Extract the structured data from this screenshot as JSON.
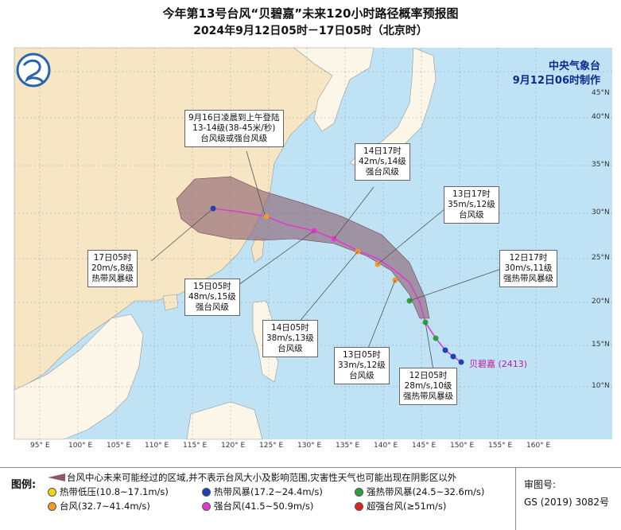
{
  "title": {
    "line1": "今年第13号台风“贝碧嘉”未来120小时路径概率预报图",
    "line2": "2024年9月12日05时－17日05时（北京时）"
  },
  "org": {
    "name": "中央气象台",
    "issued": "9月12日06时制作"
  },
  "storm": {
    "name": "贝碧嘉",
    "code": "(2413)"
  },
  "callouts": {
    "landfall": {
      "line1": "9月16日凌晨到上午登陆",
      "line2": "13-14级(38-45米/秒)",
      "line3": "台风级或强台风级"
    },
    "d14_17": {
      "line1": "14日17时",
      "line2": "42m/s,14级",
      "line3": "强台风级"
    },
    "d13_17": {
      "line1": "13日17时",
      "line2": "35m/s,12级",
      "line3": "台风级"
    },
    "d12_17": {
      "line1": "12日17时",
      "line2": "30m/s,11级",
      "line3": "强热带风暴级"
    },
    "d17_05": {
      "line1": "17日05时",
      "line2": "20m/s,8级",
      "line3": "热带风暴级"
    },
    "d15_05": {
      "line1": "15日05时",
      "line2": "48m/s,15级",
      "line3": "强台风级"
    },
    "d14_05": {
      "line1": "14日05时",
      "line2": "38m/s,13级",
      "line3": "台风级"
    },
    "d13_05": {
      "line1": "13日05时",
      "line2": "33m/s,12级",
      "line3": "台风级"
    },
    "d12_05": {
      "line1": "12日05时",
      "line2": "28m/s,10级",
      "line3": "强热带风暴级"
    }
  },
  "axes": {
    "lon_labels": [
      "95° E",
      "100° E",
      "105° E",
      "110° E",
      "115° E",
      "120° E",
      "125° E",
      "130° E",
      "135° E",
      "140° E",
      "145° E",
      "150° E",
      "155° E",
      "160° E"
    ],
    "lat_labels": [
      "10°N",
      "15°N",
      "20°N",
      "25°N",
      "30°N",
      "35°N",
      "40°N",
      "45°N"
    ]
  },
  "legend": {
    "title": "图例:",
    "cone_text": "台风中心未来可能经过的区域,并不表示台风大小及影响范围,灾害性天气也可能出现在阴影区以外",
    "items": [
      {
        "label": "热带低压(10.8~17.1m/s)",
        "color": "#f5d21a"
      },
      {
        "label": "热带风暴(17.2~24.4m/s)",
        "color": "#1f3fb5"
      },
      {
        "label": "强热带风暴(24.5~32.6m/s)",
        "color": "#2e9e3e"
      },
      {
        "label": "台风(32.7~41.4m/s)",
        "color": "#f39a2b"
      },
      {
        "label": "强台风(41.5~50.9m/s)",
        "color": "#e03ad0"
      },
      {
        "label": "超强台风(≥51m/s)",
        "color": "#d8261c"
      }
    ],
    "review_label": "审图号:",
    "review_code": "GS (2019) 3082号"
  },
  "colors": {
    "sea": "#bfe3f4",
    "land_china": "#f6e6c4",
    "land_other": "#fbf6e8",
    "cone": "#8a5c6a",
    "track": "#e03ad0"
  }
}
